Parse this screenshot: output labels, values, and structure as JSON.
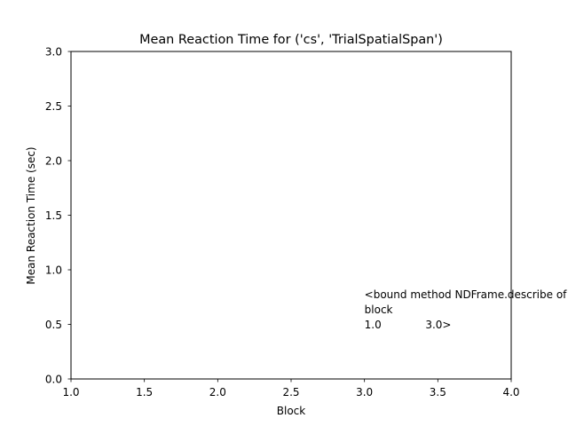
{
  "chart_data": {
    "type": "line",
    "title": "Mean Reaction Time for ('cs', 'TrialSpatialSpan')",
    "xlabel": "Block",
    "ylabel": "Mean Reaction Time (sec)",
    "xlim": [
      1.0,
      4.0
    ],
    "ylim": [
      0.0,
      3.0
    ],
    "xticks": [
      "1.0",
      "1.5",
      "2.0",
      "2.5",
      "3.0",
      "3.5",
      "4.0"
    ],
    "yticks": [
      "0.0",
      "0.5",
      "1.0",
      "1.5",
      "2.0",
      "2.5",
      "3.0"
    ],
    "grid": false,
    "series": [],
    "annotation": {
      "x": 3.0,
      "y": 0.5,
      "lines": [
        "<bound method NDFrame.describe of",
        "block",
        "1.0             3.0>"
      ]
    }
  }
}
